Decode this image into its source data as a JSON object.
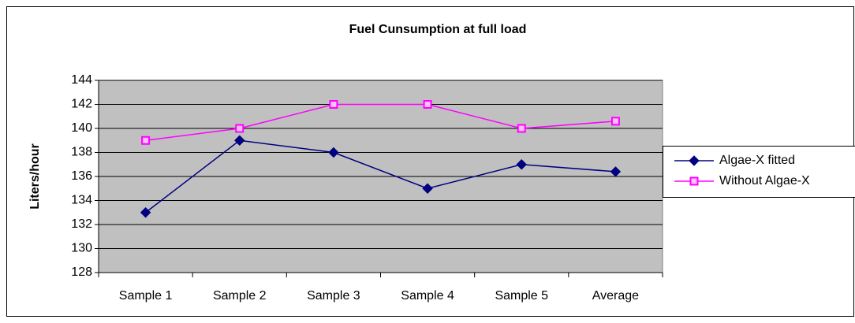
{
  "chart_data": {
    "type": "line",
    "title": "Fuel Cunsumption at full load",
    "y_label": "Liters/hour",
    "categories": [
      "Sample 1",
      "Sample 2",
      "Sample 3",
      "Sample 4",
      "Sample 5",
      "Average"
    ],
    "series": [
      {
        "name": "Algae-X fitted",
        "color": "#000080",
        "marker": "diamond",
        "values": [
          133,
          139,
          138,
          135,
          137,
          136.4
        ]
      },
      {
        "name": "Without Algae-X",
        "color": "#ff00ff",
        "marker": "square",
        "values": [
          139,
          140,
          142,
          142,
          140,
          140.6
        ]
      }
    ],
    "ylim": [
      128,
      144
    ],
    "yticks": [
      128,
      130,
      132,
      134,
      136,
      138,
      140,
      142,
      144
    ],
    "grid": true,
    "legend": "right"
  }
}
